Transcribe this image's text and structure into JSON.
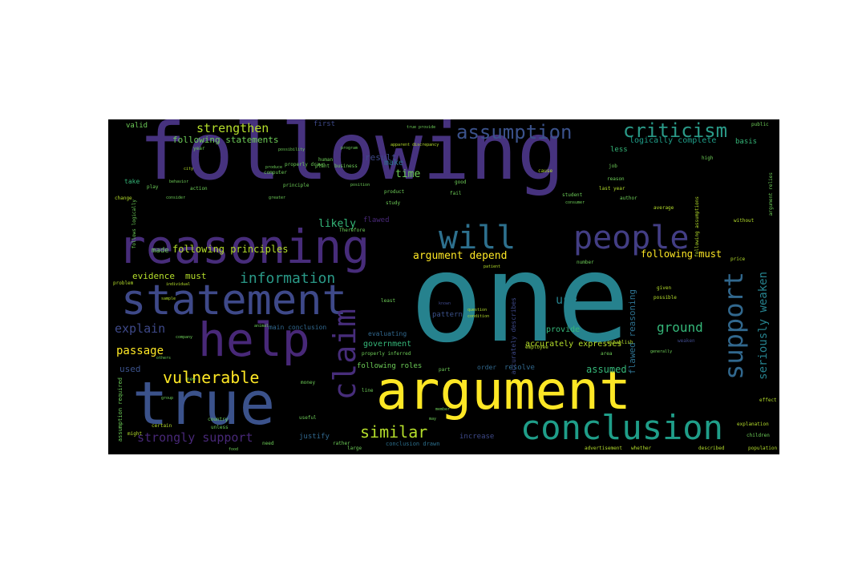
{
  "word_cloud": {
    "palette": {
      "background": "#000000",
      "purple": "#482878",
      "indigo": "#3e4989",
      "blue": "#31688e",
      "teal": "#26828e",
      "sea": "#1f9e89",
      "green": "#35b779",
      "lime": "#6ece58",
      "yellow": "#fde725",
      "dark": "#440154"
    },
    "words": {
      "following": "following",
      "one": "one",
      "argument": "argument",
      "reasoning": "reasoning",
      "statement": "statement",
      "true": "true",
      "help": "help",
      "conclusion": "conclusion",
      "people": "people",
      "will": "will",
      "claim": "claim",
      "support": "support",
      "assumption": "assumption",
      "criticism": "criticism",
      "vulnerable": "vulnerable",
      "information": "information",
      "similar": "similar",
      "strongly_support": "strongly support",
      "seriously_weaken": "seriously weaken",
      "strengthen": "strengthen",
      "explain": "explain",
      "passage": "passage",
      "ground": "ground",
      "argument_depend": "argument depend",
      "following_principles": "following principles",
      "following_must": "following must",
      "likely": "likely",
      "evidence": "evidence",
      "must": "must",
      "use": "use",
      "used": "used",
      "assumed": "assumed",
      "flawed_reasoning": "flawed reasoning",
      "made": "made",
      "result": "result",
      "time": "time",
      "make": "make",
      "following_statements": "following statements",
      "accurately_expresses": "accurately expresses",
      "logically_complete": "logically complete",
      "valid": "valid",
      "first": "first",
      "public": "public",
      "basis": "basis",
      "less": "less",
      "pattern": "pattern",
      "provide": "provide",
      "government": "government",
      "main_conclusion": "main conclusion",
      "following_roles": "following roles",
      "evaluating": "evaluating",
      "resolve": "resolve",
      "order": "order",
      "increase": "increase",
      "justify": "justify",
      "conclusion_drawn": "conclusion drawn",
      "flawed": "flawed",
      "therefore": "Therefore",
      "problem": "problem",
      "money": "money",
      "business": "business",
      "computer": "computer",
      "principle": "principle",
      "possibility": "possibility",
      "product": "product",
      "employee": "employee",
      "average": "average",
      "last_year": "last year",
      "year": "year",
      "job": "job",
      "reason": "reason",
      "given": "given",
      "possible": "possible",
      "effect": "effect",
      "explanation": "explanation",
      "children": "children",
      "population": "population",
      "advertisement": "advertisement",
      "described": "described",
      "whether": "whether",
      "rather": "rather",
      "large": "large",
      "country": "country",
      "certain": "certain",
      "might": "might",
      "unless": "unless",
      "assumption_required": "assumption required",
      "apparent_discrepancy": "apparent discrepancy",
      "properly_inferred": "properly inferred",
      "properly_drawn": "properly drawn",
      "true_provide": "true provide",
      "established": "establish",
      "sample": "sample",
      "action": "action",
      "human": "human",
      "plant": "plant",
      "good": "good",
      "fail": "fail",
      "take": "take",
      "play": "play",
      "change": "change",
      "study": "study",
      "student": "student",
      "consumer": "consumer",
      "condition": "condition",
      "question": "question",
      "least": "least",
      "known": "known",
      "part": "part",
      "number": "number",
      "area": "area",
      "price": "price",
      "new": "new",
      "need": "need",
      "useful": "useful",
      "author": "author",
      "high": "high",
      "without": "without",
      "greater": "greater",
      "position": "position",
      "program": "program",
      "produce": "produce",
      "individual": "individual",
      "behavior": "behavior",
      "consider": "consider",
      "city": "city",
      "better": "better",
      "cause": "cause",
      "food": "food",
      "group": "group",
      "animal": "animal",
      "company": "company",
      "others": "others",
      "member": "member",
      "line": "line",
      "way": "way",
      "may": "may",
      "patient": "patient",
      "weaken": "weaken",
      "generally": "generally",
      "assumption_s": "following assumptions",
      "argument_relies": "argument relies",
      "logically_follows": "follows logically",
      "accurately_describe": "accurately describes"
    }
  }
}
